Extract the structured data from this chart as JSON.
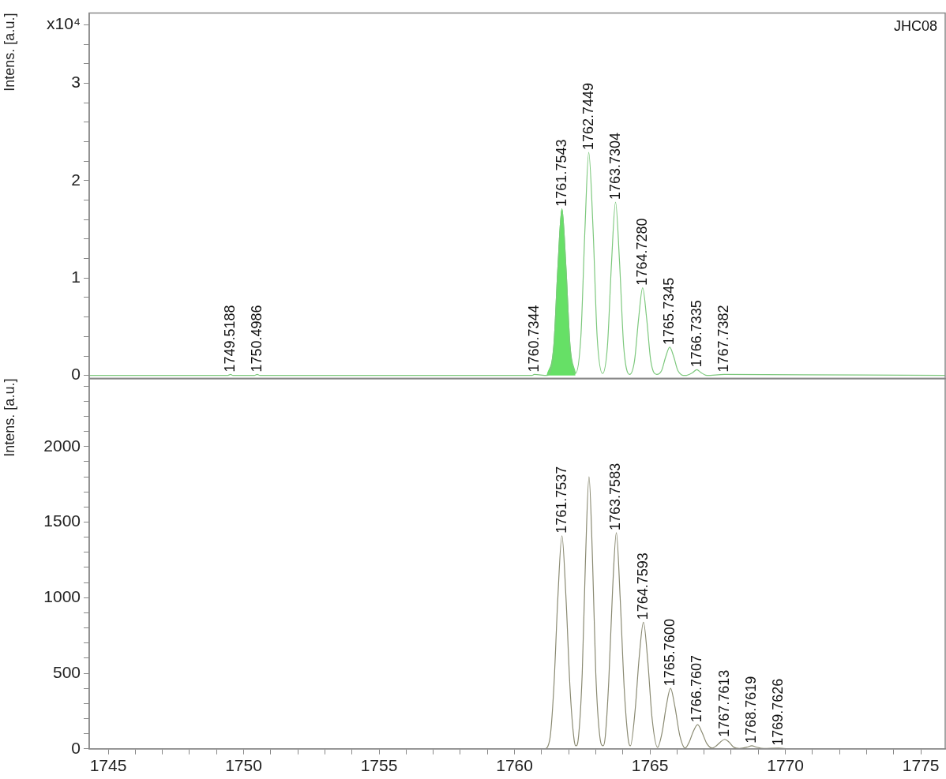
{
  "chart_data": [
    {
      "type": "line",
      "title": "JHC08",
      "ylabel": "Intens. [a.u.]",
      "xlim": [
        1744.3,
        1775.9
      ],
      "ylim": [
        -0.03,
        3.72
      ],
      "yticks": [
        0,
        {
          "value": 0.2,
          "label": null
        },
        {
          "value": 0.4,
          "label": null
        },
        {
          "value": 0.6,
          "label": null
        },
        {
          "value": 0.8,
          "label": null
        },
        1,
        {
          "value": 1.2,
          "label": null
        },
        {
          "value": 1.4,
          "label": null
        },
        {
          "value": 1.6,
          "label": null
        },
        {
          "value": 1.8,
          "label": null
        },
        2,
        {
          "value": 2.2,
          "label": null
        },
        {
          "value": 2.4,
          "label": null
        },
        {
          "value": 2.6,
          "label": null
        },
        {
          "value": 2.8,
          "label": null
        },
        3,
        {
          "value": 3.2,
          "label": null
        },
        {
          "value": 3.4,
          "label": null
        },
        {
          "value": 3.6,
          "label": "x10⁴"
        }
      ],
      "tick_labels": "y",
      "series": [
        {
          "type": "line",
          "color": "#7dc87d",
          "x": [
            1744.3,
            1749.4,
            1749.52,
            1749.6,
            1750.4,
            1750.5,
            1750.6,
            1760.65,
            1760.73,
            1761.2,
            1761.45,
            1761.6,
            1761.75,
            1761.9,
            1762.05,
            1762.25,
            1762.45,
            1762.6,
            1762.74,
            1762.9,
            1763.05,
            1763.25,
            1763.43,
            1763.58,
            1763.73,
            1763.88,
            1764.03,
            1764.25,
            1764.43,
            1764.58,
            1764.73,
            1764.88,
            1765.03,
            1765.25,
            1765.43,
            1765.58,
            1765.73,
            1765.88,
            1766.03,
            1766.3,
            1766.58,
            1766.73,
            1766.88,
            1767.1,
            1767.74,
            1775.9
          ],
          "values": [
            0,
            0,
            0.01,
            0,
            0,
            0.01,
            0,
            0,
            0.01,
            0,
            0.3,
            1.1,
            1.71,
            1.1,
            0.3,
            0.02,
            0.4,
            1.5,
            2.29,
            1.5,
            0.4,
            0.02,
            0.3,
            1.15,
            1.78,
            1.15,
            0.3,
            0.01,
            0.15,
            0.58,
            0.9,
            0.58,
            0.15,
            0.01,
            0.05,
            0.19,
            0.29,
            0.19,
            0.05,
            0,
            0.03,
            0.06,
            0.03,
            0,
            0.01,
            0
          ]
        },
        {
          "type": "area",
          "color": "#66e066",
          "x": [
            1761.2,
            1761.45,
            1761.6,
            1761.75,
            1761.9,
            1762.05,
            1762.25
          ],
          "values": [
            0,
            0.3,
            1.1,
            1.71,
            1.1,
            0.3,
            0.02
          ]
        }
      ],
      "annotations": [
        {
          "text": "1749.5188",
          "x": 1749.5188,
          "y": 0.01
        },
        {
          "text": "1750.4986",
          "x": 1750.4986,
          "y": 0.01
        },
        {
          "text": "1760.7344",
          "x": 1760.7344,
          "y": 0.01
        },
        {
          "text": "1761.7543",
          "x": 1761.7543,
          "y": 1.71
        },
        {
          "text": "1762.7449",
          "x": 1762.7449,
          "y": 2.29
        },
        {
          "text": "1763.7304",
          "x": 1763.7304,
          "y": 1.78
        },
        {
          "text": "1764.7280",
          "x": 1764.728,
          "y": 0.9
        },
        {
          "text": "1765.7345",
          "x": 1765.7345,
          "y": 0.29
        },
        {
          "text": "1766.7335",
          "x": 1766.7335,
          "y": 0.06
        },
        {
          "text": "1767.7382",
          "x": 1767.7382,
          "y": 0.01
        }
      ]
    },
    {
      "type": "line",
      "ylabel": "Intens. [a.u.]",
      "xlim": [
        1744.3,
        1775.9
      ],
      "ylim": [
        0,
        2450
      ],
      "xticks": [
        1745,
        {
          "value": 1746,
          "label": null
        },
        {
          "value": 1747,
          "label": null
        },
        {
          "value": 1748,
          "label": null
        },
        {
          "value": 1749,
          "label": null
        },
        1750,
        {
          "value": 1751,
          "label": null
        },
        {
          "value": 1752,
          "label": null
        },
        {
          "value": 1753,
          "label": null
        },
        {
          "value": 1754,
          "label": null
        },
        1755,
        {
          "value": 1756,
          "label": null
        },
        {
          "value": 1757,
          "label": null
        },
        {
          "value": 1758,
          "label": null
        },
        {
          "value": 1759,
          "label": null
        },
        1760,
        {
          "value": 1761,
          "label": null
        },
        {
          "value": 1762,
          "label": null
        },
        {
          "value": 1763,
          "label": null
        },
        {
          "value": 1764,
          "label": null
        },
        1765,
        {
          "value": 1766,
          "label": null
        },
        {
          "value": 1767,
          "label": null
        },
        {
          "value": 1768,
          "label": null
        },
        {
          "value": 1769,
          "label": null
        },
        1770,
        {
          "value": 1771,
          "label": null
        },
        {
          "value": 1772,
          "label": null
        },
        {
          "value": 1773,
          "label": null
        },
        {
          "value": 1774,
          "label": null
        },
        1775
      ],
      "yticks": [
        0,
        {
          "value": 100,
          "label": null
        },
        {
          "value": 200,
          "label": null
        },
        {
          "value": 300,
          "label": null
        },
        {
          "value": 400,
          "label": null
        },
        500,
        {
          "value": 600,
          "label": null
        },
        {
          "value": 700,
          "label": null
        },
        {
          "value": 800,
          "label": null
        },
        {
          "value": 900,
          "label": null
        },
        1000,
        {
          "value": 1100,
          "label": null
        },
        {
          "value": 1200,
          "label": null
        },
        {
          "value": 1300,
          "label": null
        },
        {
          "value": 1400,
          "label": null
        },
        1500,
        {
          "value": 1600,
          "label": null
        },
        {
          "value": 1700,
          "label": null
        },
        {
          "value": 1800,
          "label": null
        },
        {
          "value": 1900,
          "label": null
        },
        2000,
        {
          "value": 2100,
          "label": null
        },
        {
          "value": 2200,
          "label": null
        },
        {
          "value": 2300,
          "label": null
        },
        {
          "value": 2400,
          "label": null
        }
      ],
      "series": [
        {
          "type": "line",
          "color": "#8a8a72",
          "x": [
            1744.3,
            1761.1,
            1761.3,
            1761.45,
            1761.6,
            1761.75,
            1761.9,
            1762.05,
            1762.2,
            1762.27,
            1762.35,
            1762.5,
            1762.62,
            1762.75,
            1762.88,
            1763.0,
            1763.15,
            1763.27,
            1763.35,
            1763.48,
            1763.62,
            1763.76,
            1763.9,
            1764.05,
            1764.2,
            1764.28,
            1764.45,
            1764.6,
            1764.76,
            1764.92,
            1765.08,
            1765.28,
            1765.45,
            1765.6,
            1765.76,
            1765.92,
            1766.1,
            1766.3,
            1766.45,
            1766.6,
            1766.76,
            1766.92,
            1767.1,
            1767.3,
            1767.45,
            1767.6,
            1767.76,
            1767.92,
            1768.1,
            1768.3,
            1768.6,
            1768.76,
            1768.92,
            1769.2,
            1769.76,
            1770.1,
            1775.9
          ],
          "values": [
            0,
            0,
            60,
            400,
            1000,
            1410,
            1000,
            400,
            60,
            20,
            60,
            500,
            1250,
            1800,
            1250,
            500,
            80,
            20,
            80,
            450,
            1050,
            1430,
            1000,
            400,
            60,
            20,
            250,
            600,
            838,
            580,
            200,
            10,
            110,
            280,
            400,
            280,
            90,
            5,
            45,
            115,
            160,
            110,
            35,
            5,
            20,
            45,
            63,
            45,
            10,
            3,
            12,
            21,
            12,
            2,
            5,
            0,
            0
          ]
        }
      ],
      "annotations": [
        {
          "text": "1761.7537",
          "x": 1761.7537,
          "y": 1410
        },
        {
          "text": "1763.7583",
          "x": 1763.7583,
          "y": 1430
        },
        {
          "text": "1764.7593",
          "x": 1764.7593,
          "y": 838
        },
        {
          "text": "1765.7600",
          "x": 1765.76,
          "y": 400
        },
        {
          "text": "1766.7607",
          "x": 1766.7607,
          "y": 160
        },
        {
          "text": "1767.7613",
          "x": 1767.7613,
          "y": 63
        },
        {
          "text": "1768.7619",
          "x": 1768.7619,
          "y": 21
        },
        {
          "text": "1769.7626",
          "x": 1769.7626,
          "y": 5
        }
      ]
    }
  ]
}
